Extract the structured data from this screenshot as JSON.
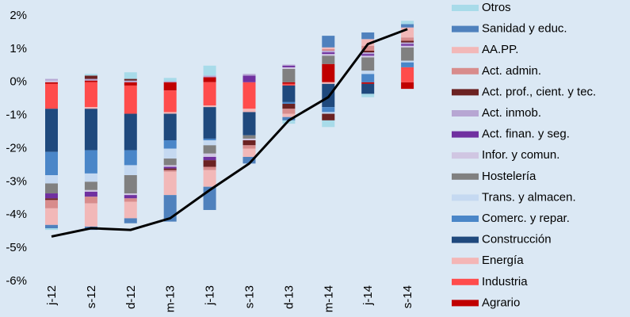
{
  "chart_data": {
    "type": "bar",
    "stacked": true,
    "categories": [
      "j-12",
      "s-12",
      "d-12",
      "m-13",
      "j-13",
      "s-13",
      "d-13",
      "m-14",
      "j-14",
      "s-14"
    ],
    "ylim": [
      -6,
      2
    ],
    "yticks": [
      {
        "value": 2,
        "label": "2%"
      },
      {
        "value": 1,
        "label": "1%"
      },
      {
        "value": 0,
        "label": "0%"
      },
      {
        "value": -1,
        "label": "-1%"
      },
      {
        "value": -2,
        "label": "-2%"
      },
      {
        "value": -3,
        "label": "-3%"
      },
      {
        "value": -4,
        "label": "-4%"
      },
      {
        "value": -5,
        "label": "-5%"
      },
      {
        "value": -6,
        "label": "-6%"
      }
    ],
    "series": [
      {
        "name": "Agrario",
        "color": "#c00000",
        "values": [
          -0.05,
          0.05,
          -0.1,
          -0.25,
          0.15,
          0,
          -0.05,
          0.55,
          -0.05,
          -0.2
        ]
      },
      {
        "name": "Industria",
        "color": "#ff4c4c",
        "values": [
          -0.75,
          -0.75,
          -0.85,
          -0.65,
          -0.7,
          -0.8,
          -0.05,
          0,
          0,
          0.45
        ]
      },
      {
        "name": "Energía",
        "color": "#f4b6b6",
        "values": [
          0,
          -0.05,
          0,
          -0.05,
          -0.05,
          -0.1,
          0,
          -0.05,
          0,
          0
        ]
      },
      {
        "name": "Construcción",
        "color": "#1f497d",
        "values": [
          -1.3,
          -1.25,
          -1.1,
          -0.8,
          -0.95,
          -0.7,
          -0.5,
          -0.7,
          -0.3,
          0
        ]
      },
      {
        "name": "Comerc. y repar.",
        "color": "#4a86c8",
        "values": [
          -0.7,
          -0.7,
          -0.45,
          -0.25,
          -0.05,
          0,
          -0.05,
          -0.15,
          0.25,
          0.15
        ]
      },
      {
        "name": "Trans. y almacen.",
        "color": "#c5d9f1",
        "values": [
          -0.25,
          -0.25,
          -0.3,
          -0.3,
          -0.15,
          0,
          0,
          -0.05,
          0.1,
          0.05
        ]
      },
      {
        "name": "Hostelería",
        "color": "#808080",
        "values": [
          -0.3,
          -0.25,
          -0.55,
          -0.2,
          -0.25,
          -0.1,
          0.4,
          0.25,
          0.4,
          0.4
        ]
      },
      {
        "name": "Infor. y comun.",
        "color": "#d0c6e2",
        "values": [
          0.05,
          -0.05,
          -0.05,
          -0.05,
          -0.1,
          -0.05,
          0.05,
          0.05,
          0.05,
          0.05
        ]
      },
      {
        "name": "Act. finan. y seg.",
        "color": "#7030a0",
        "values": [
          -0.15,
          -0.15,
          -0.1,
          -0.05,
          -0.1,
          0.2,
          0.05,
          0.05,
          0.05,
          0.05
        ]
      },
      {
        "name": "Act. inmob.",
        "color": "#b7a6d3",
        "values": [
          0.05,
          0.05,
          0.05,
          0.03,
          0.05,
          0.05,
          0.03,
          0.05,
          0.05,
          0.05
        ]
      },
      {
        "name": "Act. prof., cient. y tec.",
        "color": "#6b2222",
        "values": [
          -0.05,
          0.1,
          0.05,
          -0.05,
          -0.2,
          -0.15,
          -0.15,
          -0.2,
          0.05,
          0.05
        ]
      },
      {
        "name": "Act. admin.",
        "color": "#d88c8c",
        "values": [
          -0.25,
          -0.2,
          -0.1,
          -0.05,
          -0.1,
          -0.1,
          -0.15,
          0.05,
          0.15,
          0.1
        ]
      },
      {
        "name": "AA.PP.",
        "color": "#f2b8b8",
        "values": [
          -0.5,
          -0.7,
          -0.5,
          -0.7,
          -0.5,
          -0.25,
          -0.1,
          0.05,
          0.2,
          0.3
        ]
      },
      {
        "name": "Sanidad y educ.",
        "color": "#4f81bd",
        "values": [
          -0.1,
          -0.1,
          -0.15,
          -0.8,
          -0.7,
          -0.2,
          -0.1,
          0.35,
          0.2,
          0.1
        ]
      },
      {
        "name": "Otros",
        "color": "#a8dbe9",
        "values": [
          -0.05,
          0.05,
          0.2,
          0.1,
          0.3,
          0,
          -0.1,
          -0.2,
          -0.1,
          0.1
        ]
      }
    ],
    "line": {
      "color": "#000000",
      "values": [
        -4.65,
        -4.4,
        -4.45,
        -4.1,
        -3.25,
        -2.45,
        -1.15,
        -0.45,
        1.15,
        1.6
      ]
    }
  }
}
